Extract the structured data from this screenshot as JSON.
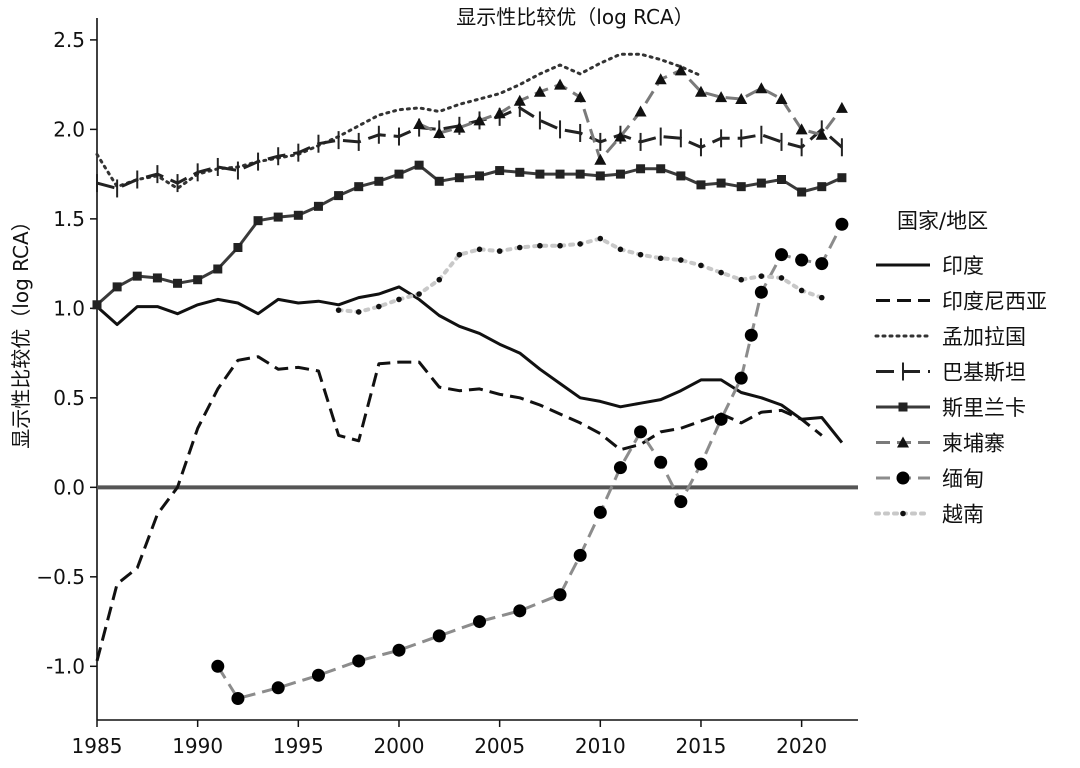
{
  "chart_data": {
    "type": "line",
    "title": "显示性比较优（log RCA）",
    "ylabel": "显示性比较优（log RCA）",
    "xlabel": "",
    "xlim": [
      1985,
      2023
    ],
    "ylim": [
      -1.3,
      2.6
    ],
    "xticks": [
      1985,
      1990,
      1995,
      2000,
      2005,
      2010,
      2015,
      2020
    ],
    "yticks": [
      2.5,
      2.0,
      1.5,
      1.0,
      0.5,
      0.0,
      -0.5,
      -1.0
    ],
    "ytick_labels": [
      "2.5",
      "2.0",
      "1.5",
      "1.0",
      "0.5",
      "0.0",
      "−0.5",
      "-1.0"
    ],
    "reference_line_y": 0.0,
    "grid": false,
    "legend": {
      "title": "国家/地区",
      "position": "right"
    },
    "series": [
      {
        "name": "印度",
        "color": "#111111",
        "style": "solid",
        "marker": "none",
        "points": [
          [
            1985,
            1.01
          ],
          [
            1986,
            0.91
          ],
          [
            1987,
            1.01
          ],
          [
            1988,
            1.01
          ],
          [
            1989,
            0.97
          ],
          [
            1990,
            1.02
          ],
          [
            1991,
            1.05
          ],
          [
            1992,
            1.03
          ],
          [
            1993,
            0.97
          ],
          [
            1994,
            1.05
          ],
          [
            1995,
            1.03
          ],
          [
            1996,
            1.04
          ],
          [
            1997,
            1.02
          ],
          [
            1998,
            1.06
          ],
          [
            1999,
            1.08
          ],
          [
            2000,
            1.12
          ],
          [
            2001,
            1.05
          ],
          [
            2002,
            0.96
          ],
          [
            2003,
            0.9
          ],
          [
            2004,
            0.86
          ],
          [
            2005,
            0.8
          ],
          [
            2006,
            0.75
          ],
          [
            2007,
            0.66
          ],
          [
            2008,
            0.58
          ],
          [
            2009,
            0.5
          ],
          [
            2010,
            0.48
          ],
          [
            2011,
            0.45
          ],
          [
            2012,
            0.47
          ],
          [
            2013,
            0.49
          ],
          [
            2014,
            0.54
          ],
          [
            2015,
            0.6
          ],
          [
            2016,
            0.6
          ],
          [
            2017,
            0.53
          ],
          [
            2018,
            0.5
          ],
          [
            2019,
            0.46
          ],
          [
            2020,
            0.38
          ],
          [
            2021,
            0.39
          ],
          [
            2022,
            0.25
          ]
        ]
      },
      {
        "name": "印度尼西亚",
        "color": "#111111",
        "style": "dashed",
        "marker": "none",
        "points": [
          [
            1985,
            -0.97
          ],
          [
            1986,
            -0.54
          ],
          [
            1987,
            -0.45
          ],
          [
            1988,
            -0.15
          ],
          [
            1989,
            0.0
          ],
          [
            1990,
            0.33
          ],
          [
            1991,
            0.55
          ],
          [
            1992,
            0.71
          ],
          [
            1993,
            0.73
          ],
          [
            1994,
            0.66
          ],
          [
            1995,
            0.67
          ],
          [
            1996,
            0.65
          ],
          [
            1997,
            0.29
          ],
          [
            1998,
            0.26
          ],
          [
            1999,
            0.69
          ],
          [
            2000,
            0.7
          ],
          [
            2001,
            0.7
          ],
          [
            2002,
            0.56
          ],
          [
            2003,
            0.54
          ],
          [
            2004,
            0.55
          ],
          [
            2005,
            0.52
          ],
          [
            2006,
            0.5
          ],
          [
            2007,
            0.46
          ],
          [
            2008,
            0.41
          ],
          [
            2009,
            0.36
          ],
          [
            2010,
            0.3
          ],
          [
            2011,
            0.21
          ],
          [
            2012,
            0.24
          ],
          [
            2013,
            0.31
          ],
          [
            2014,
            0.33
          ],
          [
            2015,
            0.37
          ],
          [
            2016,
            0.41
          ],
          [
            2017,
            0.36
          ],
          [
            2018,
            0.42
          ],
          [
            2019,
            0.43
          ],
          [
            2020,
            0.38
          ],
          [
            2021,
            0.29
          ]
        ]
      },
      {
        "name": "孟加拉国",
        "color": "#333333",
        "style": "dotted",
        "marker": "none",
        "points": [
          [
            1985,
            1.86
          ],
          [
            1986,
            1.68
          ],
          [
            1987,
            1.72
          ],
          [
            1988,
            1.74
          ],
          [
            1989,
            1.67
          ],
          [
            1990,
            1.75
          ],
          [
            1991,
            1.78
          ],
          [
            1992,
            1.79
          ],
          [
            1993,
            1.82
          ],
          [
            1994,
            1.84
          ],
          [
            1995,
            1.86
          ],
          [
            1996,
            1.91
          ],
          [
            1997,
            1.96
          ],
          [
            1998,
            2.02
          ],
          [
            1999,
            2.08
          ],
          [
            2000,
            2.11
          ],
          [
            2001,
            2.12
          ],
          [
            2002,
            2.1
          ],
          [
            2003,
            2.14
          ],
          [
            2004,
            2.17
          ],
          [
            2005,
            2.2
          ],
          [
            2006,
            2.25
          ],
          [
            2007,
            2.31
          ],
          [
            2008,
            2.36
          ],
          [
            2009,
            2.31
          ],
          [
            2010,
            2.37
          ],
          [
            2011,
            2.42
          ],
          [
            2012,
            2.42
          ],
          [
            2013,
            2.39
          ],
          [
            2014,
            2.35
          ],
          [
            2015,
            2.3
          ]
        ]
      },
      {
        "name": "巴基斯坦",
        "color": "#222222",
        "style": "longdash",
        "marker": "vbar",
        "points": [
          [
            1985,
            1.7
          ],
          [
            1986,
            1.67
          ],
          [
            1987,
            1.72
          ],
          [
            1988,
            1.75
          ],
          [
            1989,
            1.7
          ],
          [
            1990,
            1.76
          ],
          [
            1991,
            1.79
          ],
          [
            1992,
            1.77
          ],
          [
            1993,
            1.82
          ],
          [
            1994,
            1.85
          ],
          [
            1995,
            1.87
          ],
          [
            1996,
            1.92
          ],
          [
            1997,
            1.94
          ],
          [
            1998,
            1.93
          ],
          [
            1999,
            1.97
          ],
          [
            2000,
            1.96
          ],
          [
            2001,
            2.01
          ],
          [
            2002,
            2.0
          ],
          [
            2003,
            2.02
          ],
          [
            2004,
            2.05
          ],
          [
            2005,
            2.07
          ],
          [
            2006,
            2.12
          ],
          [
            2007,
            2.05
          ],
          [
            2008,
            2.0
          ],
          [
            2009,
            1.98
          ],
          [
            2010,
            1.93
          ],
          [
            2011,
            1.97
          ],
          [
            2012,
            1.93
          ],
          [
            2013,
            1.96
          ],
          [
            2014,
            1.95
          ],
          [
            2015,
            1.9
          ],
          [
            2016,
            1.95
          ],
          [
            2017,
            1.95
          ],
          [
            2018,
            1.97
          ],
          [
            2019,
            1.93
          ],
          [
            2020,
            1.9
          ],
          [
            2021,
            2.0
          ],
          [
            2022,
            1.9
          ]
        ]
      },
      {
        "name": "斯里兰卡",
        "color": "#3a3a3a",
        "style": "solid",
        "marker": "square",
        "points": [
          [
            1985,
            1.02
          ],
          [
            1986,
            1.12
          ],
          [
            1987,
            1.18
          ],
          [
            1988,
            1.17
          ],
          [
            1989,
            1.14
          ],
          [
            1990,
            1.16
          ],
          [
            1991,
            1.22
          ],
          [
            1992,
            1.34
          ],
          [
            1993,
            1.49
          ],
          [
            1994,
            1.51
          ],
          [
            1995,
            1.52
          ],
          [
            1996,
            1.57
          ],
          [
            1997,
            1.63
          ],
          [
            1998,
            1.68
          ],
          [
            1999,
            1.71
          ],
          [
            2000,
            1.75
          ],
          [
            2001,
            1.8
          ],
          [
            2002,
            1.71
          ],
          [
            2003,
            1.73
          ],
          [
            2004,
            1.74
          ],
          [
            2005,
            1.77
          ],
          [
            2006,
            1.76
          ],
          [
            2007,
            1.75
          ],
          [
            2008,
            1.75
          ],
          [
            2009,
            1.75
          ],
          [
            2010,
            1.74
          ],
          [
            2011,
            1.75
          ],
          [
            2012,
            1.78
          ],
          [
            2013,
            1.78
          ],
          [
            2014,
            1.74
          ],
          [
            2015,
            1.69
          ],
          [
            2016,
            1.7
          ],
          [
            2017,
            1.68
          ],
          [
            2018,
            1.7
          ],
          [
            2019,
            1.72
          ],
          [
            2020,
            1.65
          ],
          [
            2021,
            1.68
          ],
          [
            2022,
            1.73
          ]
        ]
      },
      {
        "name": "柬埔寨",
        "color": "#7a7a7a",
        "style": "dashed",
        "marker": "triangle",
        "points": [
          [
            2001,
            2.03
          ],
          [
            2002,
            1.98
          ],
          [
            2003,
            2.01
          ],
          [
            2004,
            2.05
          ],
          [
            2005,
            2.09
          ],
          [
            2006,
            2.16
          ],
          [
            2007,
            2.21
          ],
          [
            2008,
            2.25
          ],
          [
            2009,
            2.18
          ],
          [
            2010,
            1.83
          ],
          [
            2011,
            1.96
          ],
          [
            2012,
            2.1
          ],
          [
            2013,
            2.28
          ],
          [
            2014,
            2.33
          ],
          [
            2015,
            2.21
          ],
          [
            2016,
            2.18
          ],
          [
            2017,
            2.17
          ],
          [
            2018,
            2.23
          ],
          [
            2019,
            2.17
          ],
          [
            2020,
            2.0
          ],
          [
            2021,
            1.97
          ],
          [
            2022,
            2.12
          ]
        ]
      },
      {
        "name": "缅甸",
        "color": "#8c8c8c",
        "style": "dashed",
        "marker": "circle",
        "points": [
          [
            1991,
            -1.0
          ],
          [
            1992,
            -1.18
          ],
          [
            1994,
            -1.12
          ],
          [
            1996,
            -1.05
          ],
          [
            1998,
            -0.97
          ],
          [
            2000,
            -0.91
          ],
          [
            2002,
            -0.83
          ],
          [
            2004,
            -0.75
          ],
          [
            2006,
            -0.69
          ],
          [
            2008,
            -0.6
          ],
          [
            2009,
            -0.38
          ],
          [
            2010,
            -0.14
          ],
          [
            2011,
            0.11
          ],
          [
            2012,
            0.31
          ],
          [
            2013,
            0.14
          ],
          [
            2014,
            -0.08
          ],
          [
            2015,
            0.13
          ],
          [
            2016,
            0.38
          ],
          [
            2017,
            0.61
          ],
          [
            2017.5,
            0.85
          ],
          [
            2018,
            1.09
          ],
          [
            2019,
            1.3
          ],
          [
            2020,
            1.27
          ],
          [
            2021,
            1.25
          ],
          [
            2022,
            1.47
          ]
        ]
      },
      {
        "name": "越南",
        "color": "#c8c8c8",
        "style": "dotted-thick",
        "marker": "smalldot",
        "points": [
          [
            1997,
            0.99
          ],
          [
            1998,
            0.98
          ],
          [
            1999,
            1.01
          ],
          [
            2000,
            1.05
          ],
          [
            2001,
            1.08
          ],
          [
            2002,
            1.16
          ],
          [
            2003,
            1.3
          ],
          [
            2004,
            1.33
          ],
          [
            2005,
            1.32
          ],
          [
            2006,
            1.34
          ],
          [
            2007,
            1.35
          ],
          [
            2008,
            1.35
          ],
          [
            2009,
            1.36
          ],
          [
            2010,
            1.39
          ],
          [
            2011,
            1.33
          ],
          [
            2012,
            1.3
          ],
          [
            2013,
            1.28
          ],
          [
            2014,
            1.27
          ],
          [
            2015,
            1.24
          ],
          [
            2016,
            1.2
          ],
          [
            2017,
            1.16
          ],
          [
            2018,
            1.18
          ],
          [
            2019,
            1.17
          ],
          [
            2020,
            1.1
          ],
          [
            2021,
            1.06
          ]
        ]
      }
    ]
  }
}
